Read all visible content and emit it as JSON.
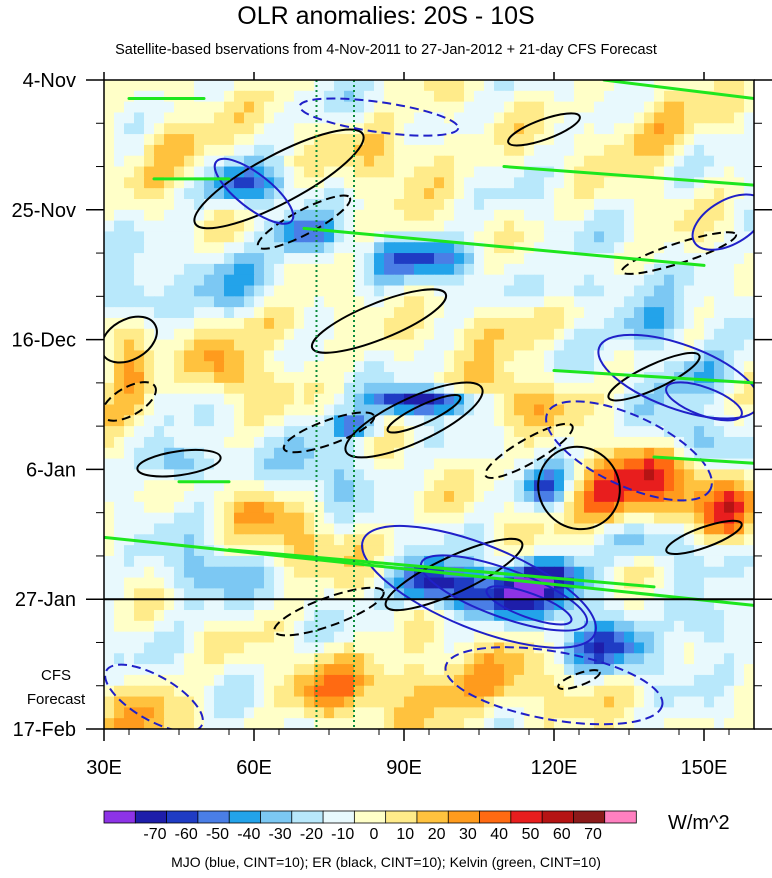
{
  "chart_data": {
    "type": "heatmap",
    "title": "OLR anomalies: 20S - 10S",
    "subtitle": "Satellite-based bservations from 4-Nov-2011 to 27-Jan-2012 + 21-day CFS Forecast",
    "x_ticks": [
      "30E",
      "60E",
      "90E",
      "120E",
      "150E"
    ],
    "x_tick_values": [
      30,
      60,
      90,
      120,
      150
    ],
    "xlim": [
      30,
      160
    ],
    "y_ticks": [
      "4-Nov",
      "25-Nov",
      "16-Dec",
      "6-Jan",
      "27-Jan",
      "17-Feb"
    ],
    "y_tick_days": [
      0,
      21,
      42,
      63,
      84,
      105
    ],
    "ylim_days": [
      0,
      105
    ],
    "forecast_label": [
      "CFS",
      "Forecast"
    ],
    "forecast_start": "27-Jan",
    "reference_longitudes": [
      72.5,
      80
    ],
    "colorbar": {
      "labels": [
        "-70",
        "-60",
        "-50",
        "-40",
        "-30",
        "-20",
        "-10",
        "0",
        "10",
        "20",
        "30",
        "40",
        "50",
        "60",
        "70"
      ],
      "colors": [
        "#8d33e6",
        "#1e1eaa",
        "#1f3cc4",
        "#4a7ee6",
        "#23a3ea",
        "#7cc8f3",
        "#b8e8fb",
        "#e8f9fd",
        "#ffffc8",
        "#ffeb8a",
        "#ffc23e",
        "#ff9b1d",
        "#ff6a12",
        "#e81e1e",
        "#b51414",
        "#8b1a1a",
        "#ff80c0"
      ],
      "units": "W/m^2"
    },
    "contours_note": "MJO (blue, CINT=10); ER (black, CINT=10); Kelvin (green, CINT=10)",
    "contour_colors": {
      "mjo": "#2020c8",
      "er": "#000000",
      "kelvin": "#1ee61e"
    }
  }
}
